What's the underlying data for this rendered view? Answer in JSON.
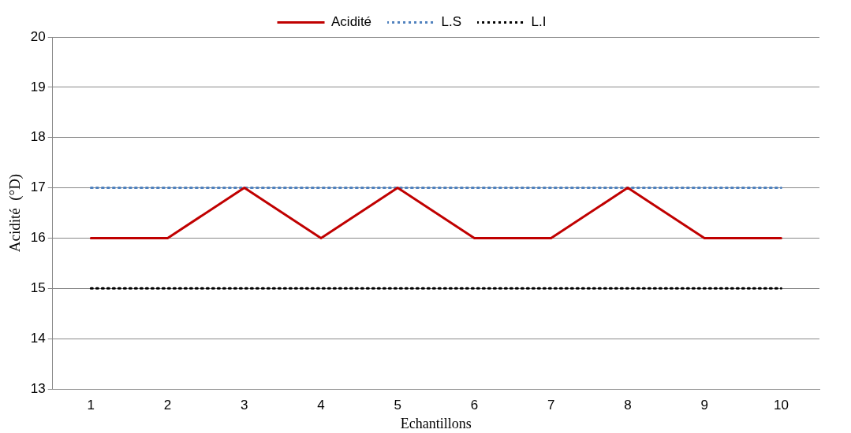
{
  "chart_data": {
    "type": "line",
    "xlabel": "Echantillons",
    "ylabel": "Acidité  (°D)",
    "categories": [
      "1",
      "2",
      "3",
      "4",
      "5",
      "6",
      "7",
      "8",
      "9",
      "10"
    ],
    "series": [
      {
        "name": "Acidité",
        "color": "#c00000",
        "line_style": "solid",
        "values": [
          16,
          16,
          17,
          16,
          17,
          16,
          16,
          17,
          16,
          16
        ]
      },
      {
        "name": "L.S",
        "color": "#4f81bd",
        "line_style": "dotted",
        "values": [
          17,
          17,
          17,
          17,
          17,
          17,
          17,
          17,
          17,
          17
        ]
      },
      {
        "name": "L.I",
        "color": "#000000",
        "line_style": "dotted",
        "values": [
          15,
          15,
          15,
          15,
          15,
          15,
          15,
          15,
          15,
          15
        ]
      }
    ],
    "ylim": [
      13,
      20
    ],
    "yticks": [
      13,
      14,
      15,
      16,
      17,
      18,
      19,
      20
    ],
    "grid": "y",
    "legend": "top",
    "marker": "none"
  }
}
